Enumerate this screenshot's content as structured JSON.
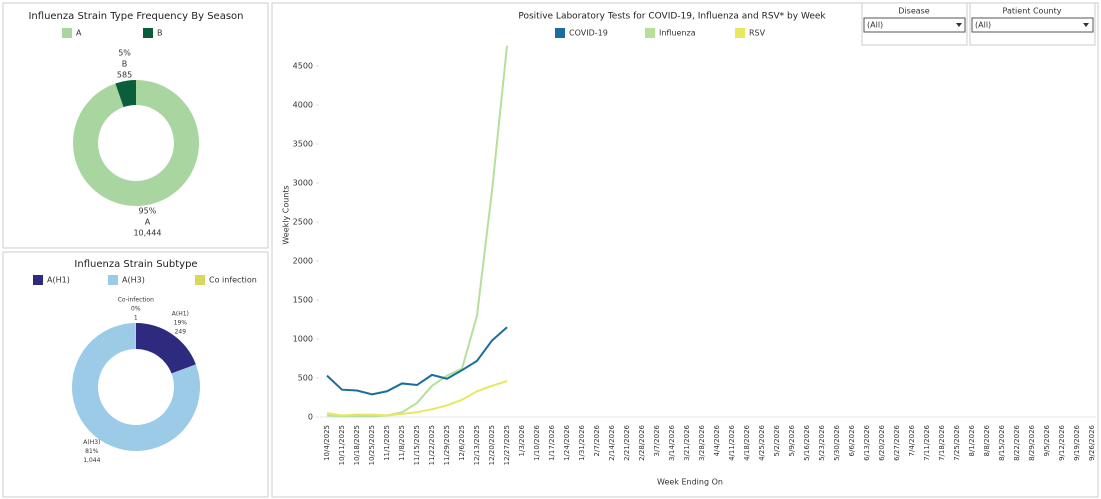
{
  "chart_data": [
    {
      "type": "donut",
      "title": "Influenza Strain Type Frequency By Season",
      "categories": [
        "A",
        "B"
      ],
      "values": [
        10444,
        585
      ],
      "value_labels": [
        "10,444",
        "585"
      ],
      "percent_labels": [
        "95%",
        "5%"
      ],
      "colors": [
        "#a8d5a0",
        "#0b5e3c"
      ]
    },
    {
      "type": "donut",
      "title": "Influenza Strain Subtype",
      "categories": [
        "A(H1)",
        "A(H3)",
        "Co infection"
      ],
      "slice_labels": [
        "A(H1)",
        "A(H3)",
        "Co-infection"
      ],
      "values": [
        249,
        1044,
        1
      ],
      "value_labels": [
        "249",
        "1,044",
        "1"
      ],
      "percent_labels": [
        "19%",
        "81%",
        "0%"
      ],
      "colors": [
        "#2e2a7e",
        "#9ccbe8",
        "#d8d860"
      ]
    },
    {
      "type": "line",
      "title": "Positive Laboratory Tests for COVID-19, Influenza and RSV* by Week",
      "x_label": "Week Ending On",
      "y_label": "Weekly Counts",
      "categories": [
        "10/4/2025",
        "10/11/2025",
        "10/18/2025",
        "10/25/2025",
        "11/1/2025",
        "11/8/2025",
        "11/15/2025",
        "11/22/2025",
        "11/29/2025",
        "12/6/2025",
        "12/13/2025",
        "12/20/2025",
        "12/27/2025",
        "1/3/2026",
        "1/10/2026",
        "1/17/2026",
        "1/24/2026",
        "1/31/2026",
        "2/7/2026",
        "2/14/2026",
        "2/21/2026",
        "2/28/2026",
        "3/7/2026",
        "3/14/2026",
        "3/21/2026",
        "3/28/2026",
        "4/4/2026",
        "4/11/2026",
        "4/18/2026",
        "4/25/2026",
        "5/2/2026",
        "5/9/2026",
        "5/16/2026",
        "5/23/2026",
        "5/30/2026",
        "6/6/2026",
        "6/13/2026",
        "6/20/2026",
        "6/27/2026",
        "7/4/2026",
        "7/11/2026",
        "7/18/2026",
        "7/25/2026",
        "8/1/2026",
        "8/8/2026",
        "8/15/2026",
        "8/22/2026",
        "8/29/2026",
        "9/5/2026",
        "9/12/2026",
        "9/19/2026",
        "9/26/2026"
      ],
      "series": [
        {
          "name": "COVID-19",
          "color": "#1a6e9e",
          "values": [
            530,
            350,
            340,
            290,
            330,
            430,
            410,
            540,
            490,
            600,
            720,
            980,
            1150,
            null,
            null,
            null,
            null,
            null,
            null,
            null,
            null,
            null,
            null,
            null,
            null,
            null,
            null,
            null,
            null,
            null,
            null,
            null,
            null,
            null,
            null,
            null,
            null,
            null,
            null,
            null,
            null,
            null,
            null,
            null,
            null,
            null,
            null,
            null,
            null,
            null,
            null,
            null
          ]
        },
        {
          "name": "Influenza",
          "color": "#b6e09a",
          "values": [
            20,
            10,
            10,
            10,
            20,
            60,
            180,
            400,
            530,
            620,
            1300,
            2900,
            4760,
            null,
            null,
            null,
            null,
            null,
            null,
            null,
            null,
            null,
            null,
            null,
            null,
            null,
            null,
            null,
            null,
            null,
            null,
            null,
            null,
            null,
            null,
            null,
            null,
            null,
            null,
            null,
            null,
            null,
            null,
            null,
            null,
            null,
            null,
            null,
            null,
            null,
            null,
            null
          ]
        },
        {
          "name": "RSV",
          "color": "#e8e860",
          "values": [
            50,
            20,
            30,
            30,
            20,
            40,
            60,
            100,
            150,
            220,
            330,
            400,
            460,
            null,
            null,
            null,
            null,
            null,
            null,
            null,
            null,
            null,
            null,
            null,
            null,
            null,
            null,
            null,
            null,
            null,
            null,
            null,
            null,
            null,
            null,
            null,
            null,
            null,
            null,
            null,
            null,
            null,
            null,
            null,
            null,
            null,
            null,
            null,
            null,
            null,
            null,
            null
          ]
        }
      ],
      "ylim": [
        0,
        4800
      ],
      "yticks": [
        0,
        500,
        1000,
        1500,
        2000,
        2500,
        3000,
        3500,
        4000,
        4500
      ],
      "grid": false
    }
  ],
  "filters": [
    {
      "label": "Disease",
      "value": "(All)"
    },
    {
      "label": "Patient County",
      "value": "(All)"
    }
  ]
}
